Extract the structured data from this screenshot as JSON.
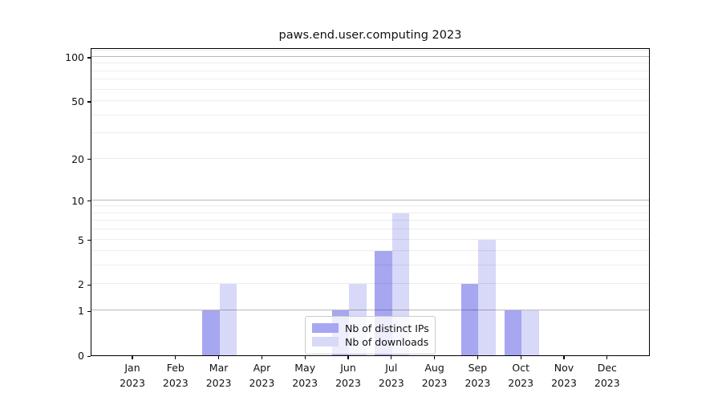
{
  "chart_data": {
    "type": "bar",
    "title": "paws.end.user.computing 2023",
    "categories": [
      "Jan",
      "Feb",
      "Mar",
      "Apr",
      "May",
      "Jun",
      "Jul",
      "Aug",
      "Sep",
      "Oct",
      "Nov",
      "Dec"
    ],
    "category_year": "2023",
    "series": [
      {
        "name": "Nb of distinct IPs",
        "color": "#a6a6f1",
        "values": [
          0,
          0,
          1,
          0,
          0,
          1,
          4,
          0,
          2,
          1,
          0,
          0
        ]
      },
      {
        "name": "Nb of downloads",
        "color": "#d8d8f8",
        "values": [
          0,
          0,
          2,
          0,
          0,
          2,
          8,
          0,
          5,
          1,
          0,
          0
        ]
      }
    ],
    "xlabel": "",
    "ylabel": "",
    "y_axis": {
      "scale": "log1p",
      "tick_labels": [
        "0",
        "1",
        "2",
        "5",
        "10",
        "20",
        "50",
        "100"
      ],
      "ticks": [
        0,
        1,
        2,
        5,
        10,
        20,
        50,
        100
      ],
      "ylim": [
        0,
        116
      ],
      "major_gridlines": [
        1,
        10,
        100
      ],
      "minor_gridlines": [
        2,
        3,
        4,
        5,
        6,
        7,
        8,
        9,
        20,
        30,
        40,
        50,
        60,
        70,
        80,
        90,
        110
      ]
    },
    "grid": true,
    "legend_position": "lower center"
  },
  "colors": {
    "background": "#ffffff",
    "spine": "#000000",
    "major_grid": "#bababa",
    "minor_grid": "#ededed",
    "legend_border": "#cccccc",
    "text": "#111111"
  }
}
